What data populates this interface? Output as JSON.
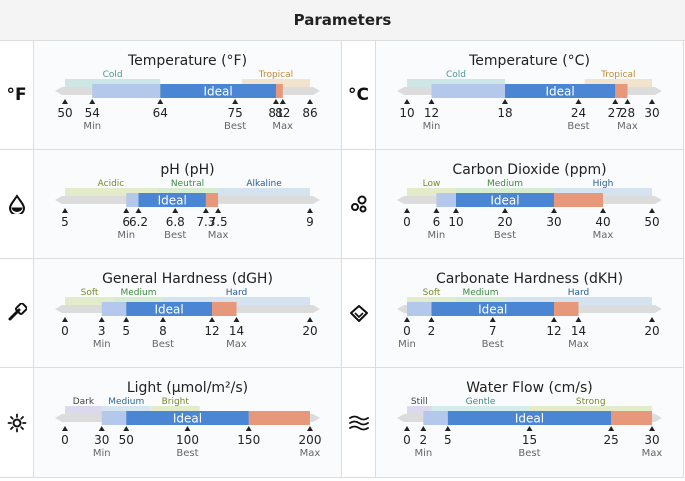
{
  "header": {
    "title": "Parameters"
  },
  "cells": [
    {
      "title": "Temperature (°F)",
      "icon": "fahrenheit-icon",
      "icon_text": "°F",
      "min_val": 50,
      "max_val": 86,
      "zones": [
        {
          "label": "Cold",
          "from": 50,
          "to": 64,
          "color": "#cfe6e6",
          "label_color": "#4a9a9a"
        },
        {
          "label": "Tropical",
          "from": 76,
          "to": 86,
          "color": "#f1e3cc",
          "label_color": "#c08a3a"
        }
      ],
      "acceptable": [
        54,
        82
      ],
      "ideal": [
        64,
        81
      ],
      "ideal_label": "Ideal",
      "ticks": [
        {
          "v": 50,
          "label": "50"
        },
        {
          "v": 54,
          "label": "54",
          "sub": "Min"
        },
        {
          "v": 64,
          "label": "64"
        },
        {
          "v": 75,
          "label": "75",
          "sub": "Best"
        },
        {
          "v": 81,
          "label": "81"
        },
        {
          "v": 82,
          "label": "82",
          "sub": "Max"
        },
        {
          "v": 86,
          "label": "86"
        }
      ]
    },
    {
      "title": "Temperature (°C)",
      "icon": "celsius-icon",
      "icon_text": "°C",
      "min_val": 10,
      "max_val": 30,
      "zones": [
        {
          "label": "Cold",
          "from": 10,
          "to": 18,
          "color": "#cfe6e6",
          "label_color": "#4a9a9a"
        },
        {
          "label": "Tropical",
          "from": 24.5,
          "to": 30,
          "color": "#f1e3cc",
          "label_color": "#c08a3a"
        }
      ],
      "acceptable": [
        12,
        28
      ],
      "ideal": [
        18,
        27
      ],
      "ideal_label": "Ideal",
      "ticks": [
        {
          "v": 10,
          "label": "10"
        },
        {
          "v": 12,
          "label": "12",
          "sub": "Min"
        },
        {
          "v": 18,
          "label": "18"
        },
        {
          "v": 24,
          "label": "24",
          "sub": "Best"
        },
        {
          "v": 27,
          "label": "27"
        },
        {
          "v": 28,
          "label": "28",
          "sub": "Max"
        },
        {
          "v": 30,
          "label": "30"
        }
      ]
    },
    {
      "title": "pH (pH)",
      "icon": "water-drop-icon",
      "min_val": 5,
      "max_val": 9,
      "zones": [
        {
          "label": "Acidic",
          "from": 5,
          "to": 6.5,
          "color": "#e3ecc8",
          "label_color": "#7a8a2a"
        },
        {
          "label": "Neutral",
          "from": 6.5,
          "to": 7.5,
          "color": "#d5ecd0",
          "label_color": "#3e8a3e"
        },
        {
          "label": "Alkaline",
          "from": 7.5,
          "to": 9,
          "color": "#d5e3f0",
          "label_color": "#2a5a9a"
        }
      ],
      "acceptable": [
        6,
        7.5
      ],
      "ideal": [
        6.2,
        7.3
      ],
      "ideal_label": "Ideal",
      "ticks": [
        {
          "v": 5,
          "label": "5"
        },
        {
          "v": 6,
          "label": "6",
          "sub": "Min"
        },
        {
          "v": 6.2,
          "label": "6.2"
        },
        {
          "v": 6.8,
          "label": "6.8",
          "sub": "Best"
        },
        {
          "v": 7.3,
          "label": "7.3"
        },
        {
          "v": 7.5,
          "label": "7.5",
          "sub": "Max"
        },
        {
          "v": 9,
          "label": "9"
        }
      ]
    },
    {
      "title": "Carbon Dioxide (ppm)",
      "icon": "bubbles-icon",
      "min_val": 0,
      "max_val": 50,
      "zones": [
        {
          "label": "Low",
          "from": 0,
          "to": 10,
          "color": "#e3ecc8",
          "label_color": "#7a8a2a"
        },
        {
          "label": "Medium",
          "from": 10,
          "to": 30,
          "color": "#d5ecd0",
          "label_color": "#3e8a3e"
        },
        {
          "label": "High",
          "from": 30,
          "to": 50,
          "color": "#d5e3f0",
          "label_color": "#2a5a9a"
        }
      ],
      "acceptable": [
        6,
        40
      ],
      "ideal": [
        10,
        30
      ],
      "ideal_label": "Ideal",
      "ticks": [
        {
          "v": 0,
          "label": "0"
        },
        {
          "v": 6,
          "label": "6",
          "sub": "Min"
        },
        {
          "v": 10,
          "label": "10"
        },
        {
          "v": 20,
          "label": "20",
          "sub": "Best"
        },
        {
          "v": 30,
          "label": "30"
        },
        {
          "v": 40,
          "label": "40",
          "sub": "Max"
        },
        {
          "v": 50,
          "label": "50"
        }
      ]
    },
    {
      "title": "General Hardness (dGH)",
      "icon": "pestle-icon",
      "min_val": 0,
      "max_val": 20,
      "zones": [
        {
          "label": "Soft",
          "from": 0,
          "to": 4,
          "color": "#e3ecc8",
          "label_color": "#7a8a2a"
        },
        {
          "label": "Medium",
          "from": 4,
          "to": 8,
          "color": "#d5ecd0",
          "label_color": "#3e8a3e"
        },
        {
          "label": "Hard",
          "from": 8,
          "to": 20,
          "color": "#d5e3f0",
          "label_color": "#2a5a9a"
        }
      ],
      "acceptable": [
        3,
        14
      ],
      "ideal": [
        5,
        12
      ],
      "ideal_label": "Ideal",
      "ticks": [
        {
          "v": 0,
          "label": "0"
        },
        {
          "v": 3,
          "label": "3",
          "sub": "Min"
        },
        {
          "v": 5,
          "label": "5"
        },
        {
          "v": 8,
          "label": "8",
          "sub": "Best"
        },
        {
          "v": 12,
          "label": "12"
        },
        {
          "v": 14,
          "label": "14",
          "sub": "Max"
        },
        {
          "v": 20,
          "label": "20"
        }
      ]
    },
    {
      "title": "Carbonate Hardness (dKH)",
      "icon": "diamond-icon",
      "min_val": 0,
      "max_val": 20,
      "zones": [
        {
          "label": "Soft",
          "from": 0,
          "to": 4,
          "color": "#e3ecc8",
          "label_color": "#7a8a2a"
        },
        {
          "label": "Medium",
          "from": 4,
          "to": 8,
          "color": "#d5ecd0",
          "label_color": "#3e8a3e"
        },
        {
          "label": "Hard",
          "from": 8,
          "to": 20,
          "color": "#d5e3f0",
          "label_color": "#2a5a9a"
        }
      ],
      "acceptable": [
        0,
        14
      ],
      "ideal": [
        2,
        12
      ],
      "ideal_label": "Ideal",
      "ticks": [
        {
          "v": 0,
          "label": "0",
          "sub": "Min"
        },
        {
          "v": 2,
          "label": "2"
        },
        {
          "v": 7,
          "label": "7",
          "sub": "Best"
        },
        {
          "v": 12,
          "label": "12"
        },
        {
          "v": 14,
          "label": "14",
          "sub": "Max"
        },
        {
          "v": 20,
          "label": "20"
        }
      ]
    },
    {
      "title": "Light (µmol/m²/s)",
      "icon": "sun-icon",
      "min_val": 0,
      "max_val": 200,
      "zones": [
        {
          "label": "Dark",
          "from": 0,
          "to": 30,
          "color": "#dcd8ee",
          "label_color": "#444"
        },
        {
          "label": "Medium",
          "from": 30,
          "to": 70,
          "color": "#d5e6f0",
          "label_color": "#2a6a9a"
        },
        {
          "label": "Bright",
          "from": 70,
          "to": 110,
          "color": "#e3ecc8",
          "label_color": "#7a8a2a"
        }
      ],
      "acceptable": [
        30,
        200
      ],
      "ideal": [
        50,
        150
      ],
      "ideal_label": "Ideal",
      "ticks": [
        {
          "v": 0,
          "label": "0"
        },
        {
          "v": 30,
          "label": "30",
          "sub": "Min"
        },
        {
          "v": 50,
          "label": "50"
        },
        {
          "v": 100,
          "label": "100",
          "sub": "Best"
        },
        {
          "v": 150,
          "label": "150"
        },
        {
          "v": 200,
          "label": "200",
          "sub": "Max"
        }
      ]
    },
    {
      "title": "Water Flow (cm/s)",
      "icon": "waves-icon",
      "min_val": 0,
      "max_val": 30,
      "zones": [
        {
          "label": "Still",
          "from": 0,
          "to": 3,
          "color": "#dcd8ee",
          "label_color": "#444"
        },
        {
          "label": "Gentle",
          "from": 3,
          "to": 15,
          "color": "#d5ecec",
          "label_color": "#3a8a8a"
        },
        {
          "label": "Strong",
          "from": 15,
          "to": 30,
          "color": "#e3ecc8",
          "label_color": "#7a8a2a"
        }
      ],
      "acceptable": [
        2,
        30
      ],
      "ideal": [
        5,
        25
      ],
      "ideal_label": "Ideal",
      "ticks": [
        {
          "v": 0,
          "label": "0"
        },
        {
          "v": 2,
          "label": "2",
          "sub": "Min"
        },
        {
          "v": 5,
          "label": "5"
        },
        {
          "v": 15,
          "label": "15",
          "sub": "Best"
        },
        {
          "v": 25,
          "label": "25"
        },
        {
          "v": 30,
          "label": "30",
          "sub": "Max"
        }
      ]
    }
  ],
  "colors": {
    "ideal": "#4a86d4",
    "acceptable": "#b3c8ea",
    "over": "#e8987a",
    "track": "#dcdcdc",
    "tick": "#222",
    "sublabel": "#666",
    "cell_bg": "#fafbfc"
  }
}
